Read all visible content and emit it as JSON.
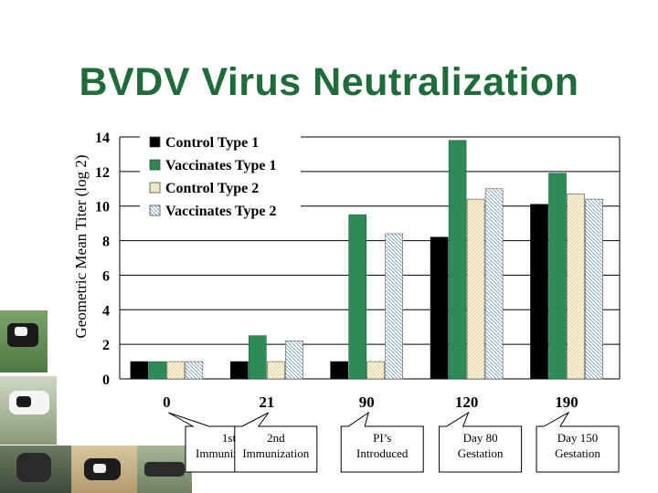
{
  "slide": {
    "title": "BVDV Virus Neutralization"
  },
  "colors": {
    "title": "#1f6b3a",
    "control_type_1": "#000000",
    "vaccinates_type_1": "#2e8b57",
    "control_type_2": "#fbf3d6",
    "vaccinates_type_2": "#cfe4ee"
  },
  "chart_data": {
    "type": "bar",
    "ylabel": "Geometric Mean Titer (log 2)",
    "xlabel": "",
    "ylim": [
      0,
      14
    ],
    "yticks": [
      "0",
      "2",
      "4",
      "6",
      "8",
      "10",
      "12",
      "14"
    ],
    "grid": true,
    "legend_position": "top-left",
    "categories": [
      "0",
      "21",
      "90",
      "120",
      "190"
    ],
    "series": [
      {
        "name": "Control Type 1",
        "values": [
          1,
          1,
          1,
          8.2,
          10.1
        ]
      },
      {
        "name": "Vaccinates Type 1",
        "values": [
          1,
          2.5,
          9.5,
          13.8,
          11.9
        ]
      },
      {
        "name": "Control Type 2",
        "values": [
          1,
          1,
          1,
          10.4,
          10.7
        ]
      },
      {
        "name": "Vaccinates Type 2",
        "values": [
          1,
          2.2,
          8.4,
          11.0,
          10.4
        ]
      }
    ]
  },
  "callouts": [
    {
      "lines": [
        "1st",
        "Immunization"
      ],
      "category_index": 0
    },
    {
      "lines": [
        "2nd",
        "Immunization"
      ],
      "category_index": 1
    },
    {
      "lines": [
        "PI’s",
        "Introduced"
      ],
      "category_index": 2
    },
    {
      "lines": [
        "Day 80",
        "Gestation"
      ],
      "category_index": 3
    },
    {
      "lines": [
        "Day 150",
        "Gestation"
      ],
      "category_index": 4
    }
  ]
}
